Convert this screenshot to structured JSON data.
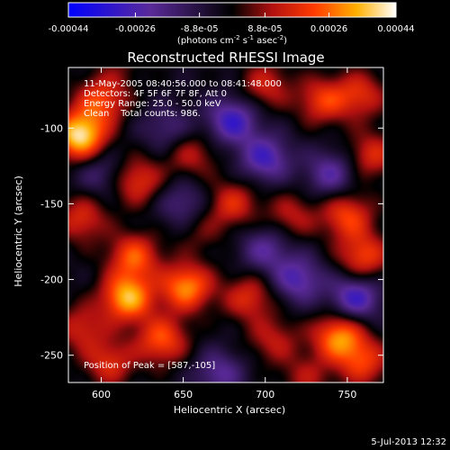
{
  "chart_data": {
    "type": "heatmap",
    "title": "Reconstructed RHESSI Image",
    "xlabel": "Heliocentric X (arcsec)",
    "ylabel": "Heliocentric Y (arcsec)",
    "xlim": [
      580,
      772
    ],
    "ylim": [
      -268,
      -60
    ],
    "x_ticks": [
      "600",
      "650",
      "700",
      "750"
    ],
    "x_tick_values": [
      600,
      650,
      700,
      750
    ],
    "y_ticks": [
      "-100",
      "-150",
      "-200",
      "-250"
    ],
    "y_tick_values": [
      -100,
      -150,
      -200,
      -250
    ],
    "colorbar": {
      "min": -0.00044,
      "max": 0.00044,
      "tick_labels": [
        "-0.00044",
        "-0.00026",
        "-8.8e-05",
        "8.8e-05",
        "0.00026",
        "0.00044"
      ],
      "tick_values": [
        -0.00044,
        -0.00026,
        -8.8e-05,
        8.8e-05,
        0.00026,
        0.00044
      ],
      "unit_label": "(photons cm-2 s-1 asec-2)"
    },
    "annotations": [
      "11-May-2005 08:40:56.000 to 08:41:48.000",
      "Detectors: 4F 5F 6F 7F 8F, Att 0",
      "Energy Range: 25.0 - 50.0 keV",
      "Clean    Total counts: 986.",
      "Position of Peak = [587,-105]"
    ],
    "peak": {
      "x": 587,
      "y": -105
    },
    "blobs": [
      {
        "x": 587,
        "y": -105,
        "v": 1.0
      },
      {
        "x": 600,
        "y": -82,
        "v": 0.55
      },
      {
        "x": 622,
        "y": -135,
        "v": 0.5
      },
      {
        "x": 655,
        "y": -118,
        "v": 0.35
      },
      {
        "x": 700,
        "y": -72,
        "v": 0.4
      },
      {
        "x": 735,
        "y": -82,
        "v": 0.5
      },
      {
        "x": 758,
        "y": -78,
        "v": 0.45
      },
      {
        "x": 765,
        "y": -118,
        "v": 0.45
      },
      {
        "x": 680,
        "y": -150,
        "v": 0.45
      },
      {
        "x": 716,
        "y": -158,
        "v": 0.35
      },
      {
        "x": 750,
        "y": -158,
        "v": 0.55
      },
      {
        "x": 760,
        "y": -185,
        "v": 0.55
      },
      {
        "x": 588,
        "y": -160,
        "v": 0.45
      },
      {
        "x": 620,
        "y": -185,
        "v": 0.6
      },
      {
        "x": 616,
        "y": -212,
        "v": 0.85
      },
      {
        "x": 652,
        "y": -205,
        "v": 0.75
      },
      {
        "x": 637,
        "y": -240,
        "v": 0.6
      },
      {
        "x": 605,
        "y": -255,
        "v": 0.45
      },
      {
        "x": 588,
        "y": -232,
        "v": 0.4
      },
      {
        "x": 690,
        "y": -212,
        "v": 0.45
      },
      {
        "x": 705,
        "y": -240,
        "v": 0.35
      },
      {
        "x": 745,
        "y": -238,
        "v": 0.75
      },
      {
        "x": 760,
        "y": -255,
        "v": 0.5
      },
      {
        "x": 725,
        "y": -265,
        "v": 0.3
      },
      {
        "x": 660,
        "y": -168,
        "v": 0.2
      },
      {
        "x": 700,
        "y": -120,
        "v": -0.55
      },
      {
        "x": 680,
        "y": -95,
        "v": -0.6
      },
      {
        "x": 740,
        "y": -130,
        "v": -0.45
      },
      {
        "x": 720,
        "y": -200,
        "v": -0.5
      },
      {
        "x": 755,
        "y": -212,
        "v": -0.6
      },
      {
        "x": 700,
        "y": -180,
        "v": -0.4
      },
      {
        "x": 672,
        "y": -262,
        "v": -0.4
      },
      {
        "x": 640,
        "y": -100,
        "v": -0.3
      },
      {
        "x": 600,
        "y": -130,
        "v": -0.3
      },
      {
        "x": 650,
        "y": -150,
        "v": -0.35
      },
      {
        "x": 612,
        "y": -60,
        "v": 0.15
      }
    ]
  },
  "footer": {
    "timestamp": "5-Jul-2013 12:32"
  }
}
